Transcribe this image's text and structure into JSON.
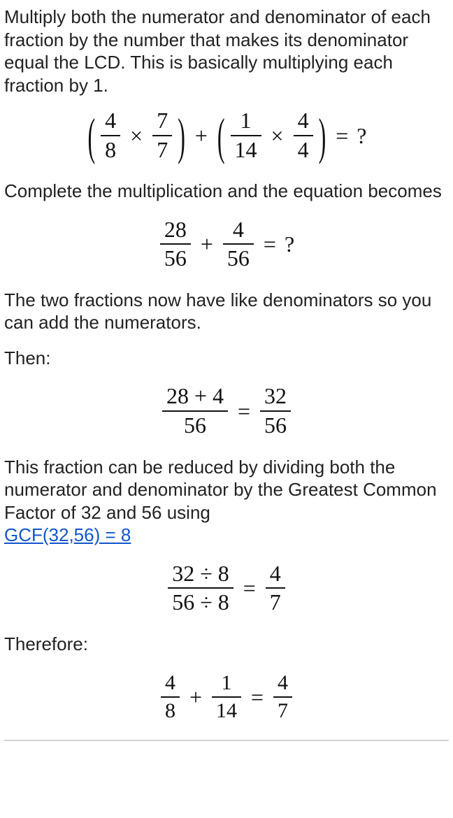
{
  "step1_text": "Multiply both the numerator and denominator of each fraction by the number that makes its denominator equal the LCD. This is basically multiplying each fraction by 1.",
  "eq1": {
    "a_num": "4",
    "a_den": "8",
    "b_num": "7",
    "b_den": "7",
    "c_num": "1",
    "c_den": "14",
    "d_num": "4",
    "d_den": "4",
    "result": "?"
  },
  "step2_text": "Complete the multiplication and the equation becomes",
  "eq2": {
    "a_num": "28",
    "a_den": "56",
    "b_num": "4",
    "b_den": "56",
    "result": "?"
  },
  "step3_text": "The two fractions now have like denominators so you can add the numerators.",
  "then_label": "Then:",
  "eq3": {
    "sum_num": "28 + 4",
    "sum_den": "56",
    "res_num": "32",
    "res_den": "56"
  },
  "step4_text": "This fraction can be reduced by dividing both the numerator and denominator by the Greatest Common Factor of 32 and 56 using",
  "gcf_link_text": "GCF(32,56) = 8",
  "eq4": {
    "top": "32 ÷ 8",
    "bot": "56 ÷ 8",
    "res_num": "4",
    "res_den": "7"
  },
  "therefore_label": "Therefore:",
  "eq5": {
    "a_num": "4",
    "a_den": "8",
    "b_num": "1",
    "b_den": "14",
    "r_num": "4",
    "r_den": "7"
  }
}
